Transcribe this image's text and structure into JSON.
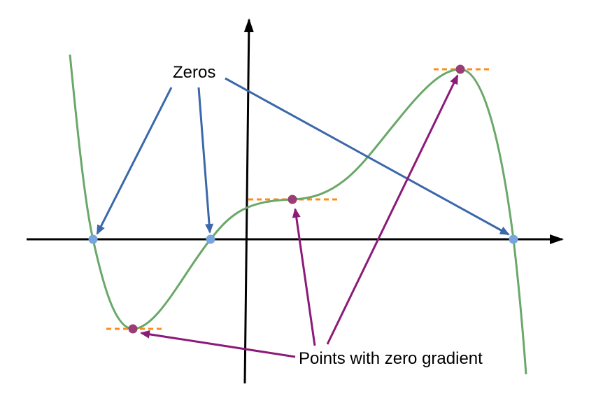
{
  "labels": {
    "zeros": "Zeros",
    "stationary": "Points with zero gradient"
  },
  "colors": {
    "curve": "#6aa86a",
    "axes": "#000000",
    "zero_arrows": "#3a68aa",
    "stationary_arrows": "#8c1a78",
    "tangent_lines": "#ff8c1a",
    "zero_points": "#77a5dd",
    "stationary_points": "#9b3c74"
  }
}
